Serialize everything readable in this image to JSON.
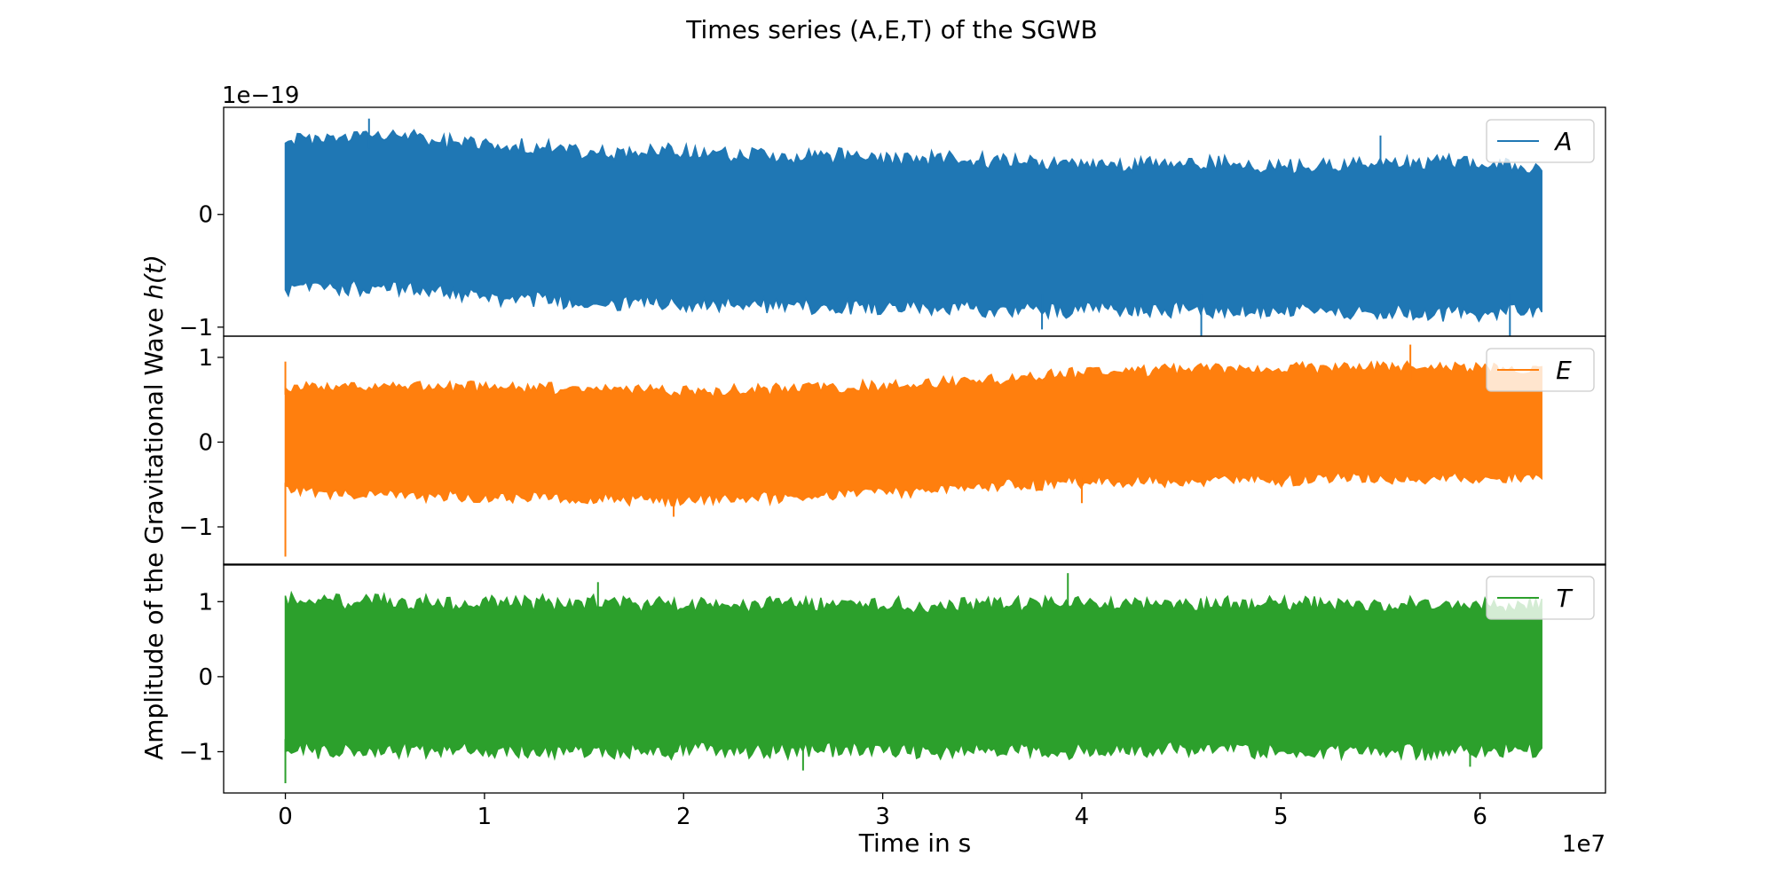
{
  "chart_data": {
    "type": "line",
    "title": "Times series (A,E,T) of the SGWB",
    "xlabel": "Time in s",
    "ylabel_main": "Amplitude of the Gravitational Wave ",
    "ylabel_math": "h(t)",
    "x_offset_label": "1e7",
    "y_offset_label": "1e−19",
    "xlim": [
      -0.31,
      6.63
    ],
    "x_range": [
      0.0,
      6.31
    ],
    "x_ticks": [
      {
        "value": 0,
        "label": "0"
      },
      {
        "value": 1,
        "label": "1"
      },
      {
        "value": 2,
        "label": "2"
      },
      {
        "value": 3,
        "label": "3"
      },
      {
        "value": 4,
        "label": "4"
      },
      {
        "value": 5,
        "label": "5"
      },
      {
        "value": 6,
        "label": "6"
      }
    ],
    "grid": false,
    "legend_position": "top-right",
    "panels": [
      {
        "series": "A",
        "color": "#1f77b4",
        "ylim": [
          -1.08,
          0.95
        ],
        "y_ticks": [
          {
            "value": 0,
            "label": "0"
          },
          {
            "value": -1,
            "label": "−1"
          }
        ],
        "envelope": {
          "x": [
            0.0,
            0.5,
            1.0,
            1.5,
            2.0,
            2.5,
            3.0,
            3.5,
            4.0,
            4.5,
            5.0,
            5.5,
            6.0,
            6.31
          ],
          "upper": [
            0.7,
            0.74,
            0.66,
            0.6,
            0.6,
            0.56,
            0.54,
            0.52,
            0.48,
            0.5,
            0.46,
            0.5,
            0.5,
            0.42
          ],
          "lower": [
            -0.7,
            -0.68,
            -0.76,
            -0.82,
            -0.84,
            -0.86,
            -0.86,
            -0.88,
            -0.88,
            -0.88,
            -0.9,
            -0.92,
            -0.92,
            -0.86
          ]
        },
        "spikes": [
          {
            "x": 0.42,
            "y": 0.85
          },
          {
            "x": 3.8,
            "y": -1.02
          },
          {
            "x": 4.6,
            "y": -1.08
          },
          {
            "x": 6.15,
            "y": -1.1
          },
          {
            "x": 5.5,
            "y": 0.7
          }
        ]
      },
      {
        "series": "E",
        "color": "#ff7f0e",
        "ylim": [
          -1.45,
          1.25
        ],
        "y_ticks": [
          {
            "value": 1,
            "label": "1"
          },
          {
            "value": 0,
            "label": "0"
          },
          {
            "value": -1,
            "label": "−1"
          }
        ],
        "envelope": {
          "x": [
            0.0,
            0.5,
            1.0,
            1.5,
            2.0,
            2.5,
            3.0,
            3.5,
            4.0,
            4.5,
            5.0,
            5.5,
            6.0,
            6.31
          ],
          "upper": [
            0.7,
            0.68,
            0.7,
            0.66,
            0.64,
            0.66,
            0.7,
            0.76,
            0.86,
            0.9,
            0.9,
            0.92,
            0.9,
            0.88
          ],
          "lower": [
            -0.6,
            -0.66,
            -0.68,
            -0.7,
            -0.72,
            -0.7,
            -0.64,
            -0.56,
            -0.52,
            -0.5,
            -0.48,
            -0.46,
            -0.48,
            -0.44
          ]
        },
        "spikes": [
          {
            "x": 0.0,
            "y": -1.35
          },
          {
            "x": 0.0,
            "y": 0.95
          },
          {
            "x": 5.65,
            "y": 1.15
          },
          {
            "x": 1.95,
            "y": -0.88
          },
          {
            "x": 4.0,
            "y": -0.72
          }
        ]
      },
      {
        "series": "T",
        "color": "#2ca02c",
        "ylim": [
          -1.55,
          1.5
        ],
        "y_ticks": [
          {
            "value": 1,
            "label": "1"
          },
          {
            "value": 0,
            "label": "0"
          },
          {
            "value": -1,
            "label": "−1"
          }
        ],
        "envelope": {
          "x": [
            0.0,
            0.5,
            1.0,
            1.5,
            2.0,
            2.5,
            3.0,
            3.5,
            4.0,
            4.5,
            5.0,
            5.5,
            6.0,
            6.31
          ],
          "upper": [
            1.1,
            1.06,
            1.04,
            1.04,
            1.02,
            1.02,
            1.02,
            1.02,
            1.04,
            1.02,
            1.02,
            1.02,
            1.02,
            1.0
          ],
          "lower": [
            -1.04,
            -1.04,
            -1.04,
            -1.04,
            -1.04,
            -1.04,
            -1.04,
            -1.04,
            -1.04,
            -1.04,
            -1.04,
            -1.04,
            -1.06,
            -1.0
          ]
        },
        "spikes": [
          {
            "x": 0.0,
            "y": -1.42
          },
          {
            "x": 3.93,
            "y": 1.38
          },
          {
            "x": 2.6,
            "y": -1.25
          },
          {
            "x": 1.57,
            "y": 1.26
          },
          {
            "x": 5.95,
            "y": -1.2
          }
        ]
      }
    ]
  }
}
